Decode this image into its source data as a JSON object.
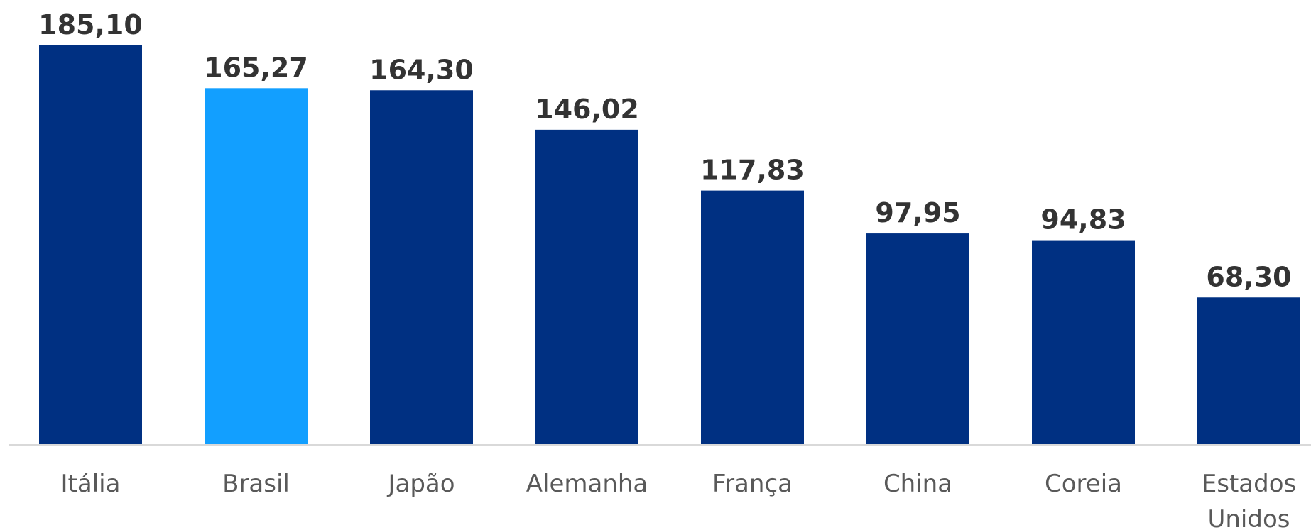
{
  "chart_data": {
    "type": "bar",
    "categories": [
      "Itália",
      "Brasil",
      "Japão",
      "Alemanha",
      "França",
      "China",
      "Coreia",
      "Estados Unidos"
    ],
    "category_lines": [
      [
        "Itália"
      ],
      [
        "Brasil"
      ],
      [
        "Japão"
      ],
      [
        "Alemanha"
      ],
      [
        "França"
      ],
      [
        "China"
      ],
      [
        "Coreia"
      ],
      [
        "Estados",
        "Unidos"
      ]
    ],
    "values": [
      185.1,
      165.27,
      164.3,
      146.02,
      117.83,
      97.95,
      94.83,
      68.3
    ],
    "value_labels": [
      "185,10",
      "165,27",
      "164,30",
      "146,02",
      "117,83",
      "97,95",
      "94,83",
      "68,30"
    ],
    "ylim": [
      0,
      185.1
    ],
    "grid": false,
    "colors": {
      "default_bar": "#003082",
      "highlight_bar": "#129FFF",
      "axis_line": "#d9d9d9",
      "value_text": "#333333",
      "category_text": "#595959"
    },
    "highlight_category": "Brasil"
  }
}
